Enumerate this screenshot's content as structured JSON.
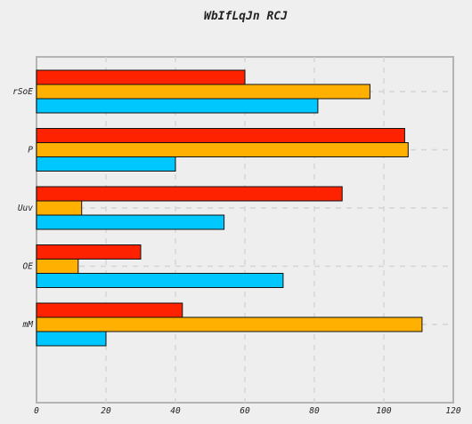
{
  "chart_data": {
    "type": "bar",
    "orientation": "horizontal",
    "title": "WbIfLqJn RCJ",
    "xlabel": "",
    "ylabel": "",
    "categories": [
      "rSoE",
      "P",
      "Uuv",
      "OE",
      "mM"
    ],
    "series": [
      {
        "color": "#ff2200",
        "values": [
          60,
          106,
          88,
          30,
          42
        ]
      },
      {
        "color": "#ffb000",
        "values": [
          96,
          107,
          13,
          12,
          111
        ]
      },
      {
        "color": "#00c8ff",
        "values": [
          81,
          40,
          54,
          71,
          20
        ]
      }
    ],
    "xlim": [
      0,
      120
    ],
    "xticks": [
      "0",
      "20",
      "40",
      "60",
      "80",
      "100",
      "120"
    ],
    "grid": true,
    "legend": "none"
  }
}
